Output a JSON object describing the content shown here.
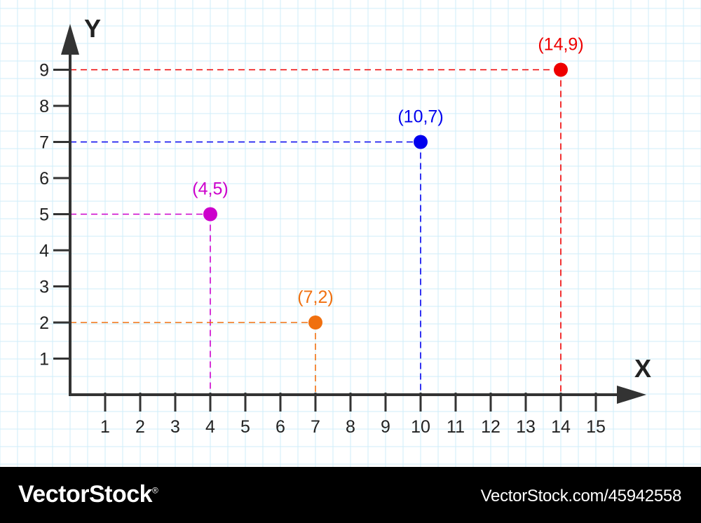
{
  "chart_data": {
    "type": "scatter",
    "title": "",
    "xlabel": "X",
    "ylabel": "Y",
    "xlim": [
      0,
      15
    ],
    "ylim": [
      0,
      9
    ],
    "x_ticks": [
      "1",
      "2",
      "3",
      "4",
      "5",
      "6",
      "7",
      "8",
      "9",
      "10",
      "11",
      "12",
      "13",
      "14",
      "15"
    ],
    "y_ticks": [
      "1",
      "2",
      "3",
      "4",
      "5",
      "6",
      "7",
      "8",
      "9"
    ],
    "grid": true,
    "background_grid_color": "#cfeefa",
    "points": [
      {
        "label": "(4,5)",
        "x": 4,
        "y": 5,
        "color": "#cc00cc"
      },
      {
        "label": "(7,2)",
        "x": 7,
        "y": 2,
        "color": "#f07010"
      },
      {
        "label": "(10,7)",
        "x": 10,
        "y": 7,
        "color": "#0000ee"
      },
      {
        "label": "(14,9)",
        "x": 14,
        "y": 9,
        "color": "#ee0000"
      }
    ]
  },
  "footer": {
    "brand": "VectorStock",
    "trademark": "®",
    "url": "VectorStock.com/45942558"
  }
}
